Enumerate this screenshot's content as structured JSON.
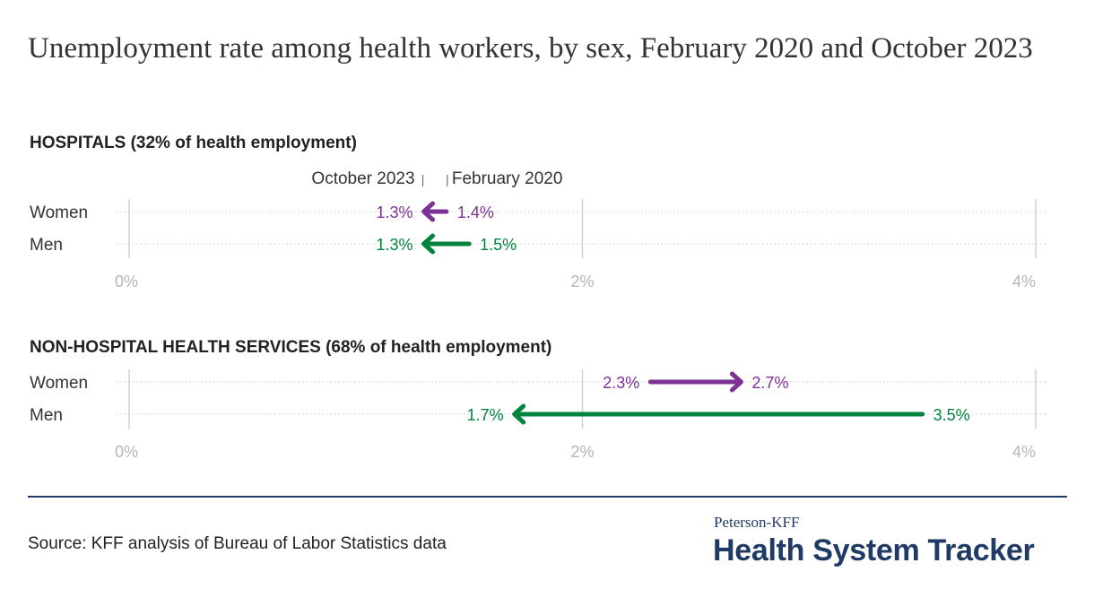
{
  "title": "Unemployment rate among health workers, by sex, February 2020 and October 2023",
  "colors": {
    "women": "#7b3294",
    "men": "#00843d",
    "brand": "#1f3a66",
    "grid": "#d0d0d0"
  },
  "annotations": {
    "end_label": "October 2023",
    "start_label": "February 2020"
  },
  "chart_data": [
    {
      "type": "dumbbell-arrow",
      "title": "HOSPITALS (32% of health employment)",
      "xlim": [
        0,
        4
      ],
      "x_ticks": [
        "0%",
        "2%",
        "4%"
      ],
      "series": [
        {
          "name": "Women",
          "start": 1.4,
          "end": 1.3,
          "start_label": "1.4%",
          "end_label": "1.3%"
        },
        {
          "name": "Men",
          "start": 1.5,
          "end": 1.3,
          "start_label": "1.5%",
          "end_label": "1.3%"
        }
      ]
    },
    {
      "type": "dumbbell-arrow",
      "title": "NON-HOSPITAL HEALTH SERVICES (68% of health employment)",
      "xlim": [
        0,
        4
      ],
      "x_ticks": [
        "0%",
        "2%",
        "4%"
      ],
      "series": [
        {
          "name": "Women",
          "start": 2.3,
          "end": 2.7,
          "start_label": "2.3%",
          "end_label": "2.7%"
        },
        {
          "name": "Men",
          "start": 3.5,
          "end": 1.7,
          "start_label": "3.5%",
          "end_label": "1.7%"
        }
      ]
    }
  ],
  "source": "Source: KFF analysis of Bureau of Labor Statistics data",
  "brand": {
    "top": "Peterson-KFF",
    "main": "Health System Tracker"
  }
}
